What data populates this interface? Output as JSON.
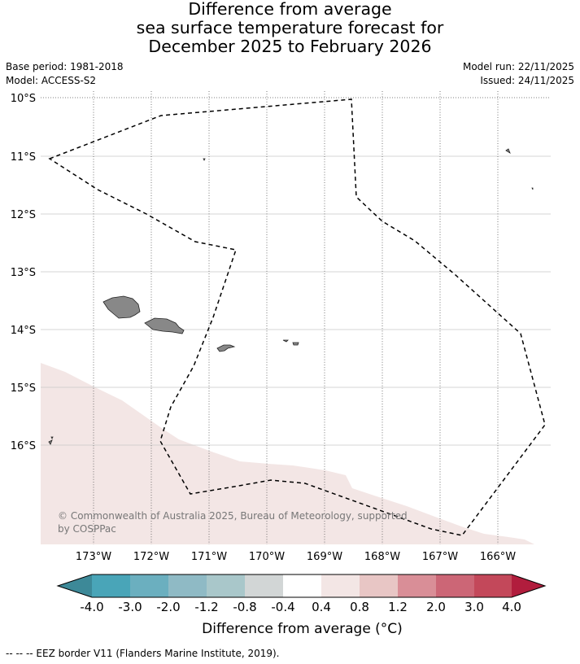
{
  "title": {
    "line1": "Difference from average",
    "line2": "sea surface temperature forecast for",
    "line3": "December 2025 to February 2026"
  },
  "meta": {
    "base_period": "Base period: 1981-2018",
    "model": "Model: ACCESS-S2",
    "model_run": "Model run: 22/11/2025",
    "issued": "Issued: 24/11/2025"
  },
  "map": {
    "lat_labels": [
      "10°S",
      "11°S",
      "12°S",
      "13°S",
      "14°S",
      "15°S",
      "16°S"
    ],
    "lon_labels": [
      "173°W",
      "172°W",
      "171°W",
      "170°W",
      "169°W",
      "168°W",
      "167°W",
      "166°W"
    ],
    "copyright_line1": "© Commonwealth of Australia 2025, Bureau of Meteorology, supported",
    "copyright_line2": "by COSPPac",
    "land_color": "#888888",
    "anomaly_fill_color": "#f3e6e5"
  },
  "colorbar": {
    "ticks": [
      "-4.0",
      "-3.0",
      "-2.0",
      "-1.2",
      "-0.8",
      "-0.4",
      "0.4",
      "0.8",
      "1.2",
      "2.0",
      "3.0",
      "4.0"
    ],
    "colors": [
      "#3d8998",
      "#49a5b8",
      "#6bafbf",
      "#8fbac5",
      "#a9c7ca",
      "#d2d6d6",
      "#ffffff",
      "#f3e6e5",
      "#e8c6c5",
      "#d98e97",
      "#cc6676",
      "#c3485a",
      "#b11d3d"
    ],
    "title": "Difference from average (°C)"
  },
  "footer": {
    "legend": "-- -- -- EEZ border V11 (Flanders Marine Institute, 2019)."
  }
}
